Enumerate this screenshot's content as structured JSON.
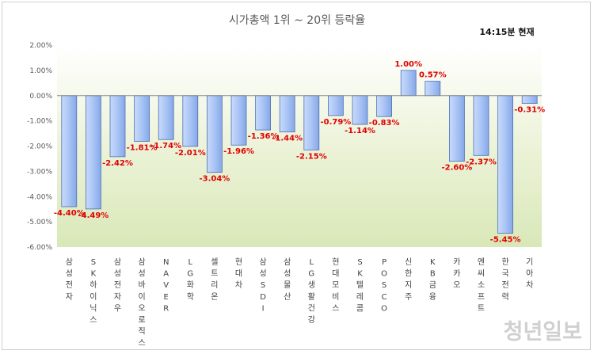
{
  "chart_data": {
    "type": "bar",
    "title": "시가총액 1위 ~ 20위 등락율",
    "timestamp": "14:15분 현재",
    "categories": [
      "삼성전자",
      "SK하이닉스",
      "삼성전자우",
      "삼성바이오로직스",
      "NAVER",
      "LG화학",
      "셀트리온",
      "현대차",
      "삼성SDI",
      "삼성물산",
      "LG생활건강",
      "현대모비스",
      "SK텔레콤",
      "POSCO",
      "신한지주",
      "KB금융",
      "카카오",
      "엔씨소프트",
      "한국전력",
      "기아차"
    ],
    "values": [
      -4.4,
      -4.49,
      -2.42,
      -1.81,
      -1.74,
      -2.01,
      -3.04,
      -1.96,
      -1.36,
      -1.44,
      -2.15,
      -0.79,
      -1.14,
      -0.83,
      1.0,
      0.57,
      -2.6,
      -2.37,
      -5.45,
      -0.31
    ],
    "value_labels": [
      "-4.40%",
      "-4.49%",
      "-2.42%",
      "-1.81%",
      "-1.74%",
      "-2.01%",
      "-3.04%",
      "-1.96%",
      "-1.36%",
      "-1.44%",
      "-2.15%",
      "-0.79%",
      "-1.14%",
      "-0.83%",
      "1.00%",
      "0.57%",
      "-2.60%",
      "-2.37%",
      "-5.45%",
      "-0.31%"
    ],
    "y_ticks": [
      "2.00%",
      "1.00%",
      "0.00%",
      "-1.00%",
      "-2.00%",
      "-3.00%",
      "-4.00%",
      "-5.00%",
      "-6.00%"
    ],
    "ylim": [
      -6,
      2
    ],
    "xlabel": "",
    "ylabel": "",
    "grid": false,
    "bar_color": "#a9c4f5",
    "bar_edge_color": "#4a6fb5",
    "label_color": "#e00000",
    "plot_background": "light-green-gradient"
  },
  "watermark": "청년일보"
}
